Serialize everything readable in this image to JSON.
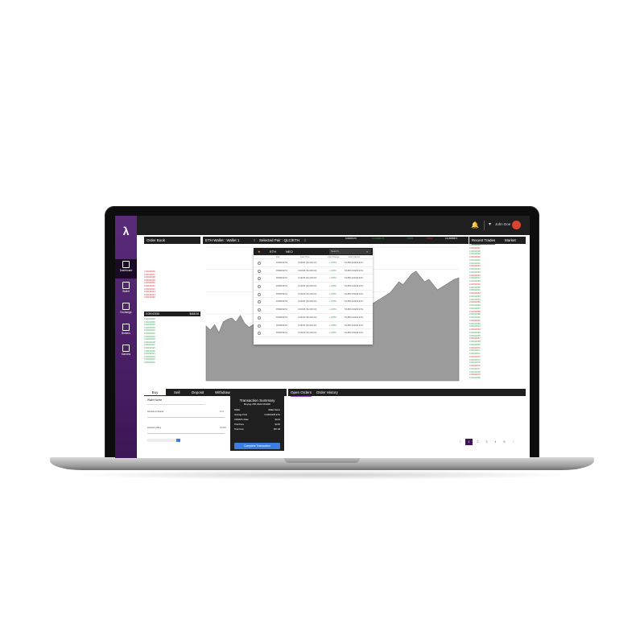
{
  "app": {
    "user_name": "John Doe"
  },
  "sidebar": {
    "items": [
      {
        "label": "Dashboard",
        "icon": "dashboard-icon"
      },
      {
        "label": "Wallet",
        "icon": "wallet-icon"
      },
      {
        "label": "Exchange",
        "icon": "exchange-icon"
      },
      {
        "label": "Brokers",
        "icon": "brokers-icon"
      },
      {
        "label": "Markets",
        "icon": "markets-icon"
      }
    ]
  },
  "order_book": {
    "title": "Order Book",
    "asks": [
      "0.00042936",
      "0.00042937",
      "0.00042938",
      "0.00042939",
      "0.00042940",
      "0.00042941",
      "0.00042942",
      "0.00042943",
      "0.00042944",
      "0.00042945"
    ],
    "spread_price": "0.00047636",
    "spread_value": "$468.06",
    "bids": [
      "0.00042936",
      "0.00042935",
      "0.00042934",
      "0.00042933",
      "0.00042932",
      "0.00042931",
      "0.00042930",
      "0.00042929",
      "0.00042928",
      "0.00042927",
      "0.00042926",
      "0.00042925",
      "0.00042924",
      "0.00042923",
      "0.00042922",
      "0.00042921"
    ]
  },
  "chart_header": {
    "wallet": "ETH Wallet : Wallet 1",
    "pair": "Selected Pair : QLC/ETH",
    "last_price": "0.00000173",
    "change_24h": "+0.00000172",
    "high_24h": "0.0005",
    "low_24h": "0.0003",
    "volume_24h": "113.8858874"
  },
  "pair_selector": {
    "tabs": [
      "ETH",
      "NEO"
    ],
    "search_placeholder": "Search...",
    "columns": [
      "Pair",
      "Last Price",
      "24H Change",
      "24H Volume"
    ],
    "rows": [
      {
        "pair": "RNWD/ETH",
        "price": "0.04346 ($1,000.00)",
        "change": "+1.88%",
        "volume": "54,886.234234 ETH"
      },
      {
        "pair": "RNWD/ETH",
        "price": "0.04346 ($1,000.00)",
        "change": "+1.88%",
        "volume": "54,886.234234 ETH"
      },
      {
        "pair": "RNWD/ETH",
        "price": "0.04346 ($1,000.00)",
        "change": "+1.88%",
        "volume": "54,886.234234 ETH"
      },
      {
        "pair": "RNWD/ETH",
        "price": "0.04346 ($1,000.00)",
        "change": "+1.88%",
        "volume": "54,886.234234 ETH"
      },
      {
        "pair": "RNWD/ETH",
        "price": "0.04346 ($1,000.00)",
        "change": "+1.88%",
        "volume": "54,886.234234 ETH"
      },
      {
        "pair": "RNWD/ETH",
        "price": "0.04346 ($1,000.00)",
        "change": "+1.88%",
        "volume": "54,886.234234 ETH"
      },
      {
        "pair": "RNWD/ETH",
        "price": "0.04346 ($1,000.00)",
        "change": "+1.88%",
        "volume": "54,886.234234 ETH"
      },
      {
        "pair": "RNWD/ETH",
        "price": "0.04346 ($1,000.00)",
        "change": "+1.88%",
        "volume": "54,886.234234 ETH"
      },
      {
        "pair": "RNWD/ETH",
        "price": "0.04346 ($1,000.00)",
        "change": "+1.88%",
        "volume": "54,886.234234 ETH"
      },
      {
        "pair": "RNWD/ETH",
        "price": "0.04346 ($1,000.00)",
        "change": "+1.88%",
        "volume": "54,886.234234 ETH"
      }
    ]
  },
  "recent_trades": {
    "tabs": [
      "Recent Trades",
      "Market"
    ],
    "rows": [
      "0.00042936",
      "0.00042937",
      "0.00042938",
      "0.00042939",
      "0.00042940",
      "0.00042941",
      "0.00042942",
      "0.00042943",
      "0.00042944",
      "0.00042945",
      "0.00042946",
      "0.00042947",
      "0.00042948",
      "0.00042949",
      "0.00042950",
      "0.00042951",
      "0.00042952",
      "0.00042953",
      "0.00042954",
      "0.00042955",
      "0.00042956",
      "0.00042957",
      "0.00042958",
      "0.00042959",
      "0.00042960",
      "0.00042961",
      "0.00042962",
      "0.00042963",
      "0.00042964",
      "0.00042965",
      "0.00042966",
      "0.00042967",
      "0.00042968",
      "0.00042969",
      "0.00042970",
      "0.00042971",
      "0.00042972",
      "0.00042973",
      "0.00042974",
      "0.00042975",
      "0.00042976",
      "0.00042977",
      "0.00042978",
      "0.00042979",
      "0.00042980"
    ]
  },
  "trade_form": {
    "tabs": [
      "Buy",
      "Sell",
      "Deposit",
      "Withdraw"
    ],
    "wallet_label": "Wallet Name",
    "amount_spend_label": "Amount to Spend",
    "amount_spend_unit": "ETH",
    "amount_buy_label": "Amount to Buy",
    "amount_buy_unit": "RNWD"
  },
  "summary": {
    "title": "Transaction Summary",
    "buying": "Buying 250.3022 RNWD",
    "rows": [
      {
        "k": "Wallet",
        "v": "Wallet Name"
      },
      {
        "k": "Average Price",
        "v": "0.00004345 ETH"
      },
      {
        "k": "USD/ETH Rate",
        "v": "$0.24"
      },
      {
        "k": "Total Fees",
        "v": "$3.00"
      },
      {
        "k": "Total Cost",
        "v": "$57.48"
      }
    ],
    "button": "Complete Transaction"
  },
  "orders": {
    "tabs": [
      "Open Orders",
      "Order History"
    ]
  },
  "pager": {
    "pages": [
      "‹",
      "1",
      "2",
      "3",
      "4",
      "5",
      "›"
    ]
  },
  "chart_data": {
    "type": "area",
    "x": [
      0,
      1,
      2,
      3,
      4,
      5,
      6,
      7,
      8,
      9,
      10,
      11,
      12,
      13,
      14,
      15,
      16,
      17,
      18,
      19,
      20,
      21,
      22,
      23,
      24,
      25,
      26,
      27,
      28,
      29,
      30,
      31,
      32,
      33,
      34,
      35,
      36,
      37,
      38,
      39,
      40,
      41,
      42,
      43,
      44,
      45,
      46,
      47,
      48,
      49,
      50,
      51,
      52,
      53,
      54,
      55,
      56,
      57,
      58,
      59
    ],
    "y": [
      41,
      38,
      42,
      36,
      44,
      46,
      47,
      44,
      49,
      43,
      40,
      42,
      45,
      44,
      41,
      43,
      46,
      44,
      42,
      39,
      41,
      44,
      45,
      43,
      41,
      40,
      42,
      38,
      36,
      40,
      42,
      44,
      46,
      48,
      50,
      49,
      52,
      54,
      56,
      58,
      60,
      62,
      64,
      66,
      70,
      74,
      72,
      76,
      80,
      82,
      78,
      74,
      76,
      72,
      68,
      70,
      72,
      74,
      76,
      77
    ],
    "colors": {
      "fill": "#9b9b9b",
      "stroke": "#6f6f6f"
    }
  }
}
